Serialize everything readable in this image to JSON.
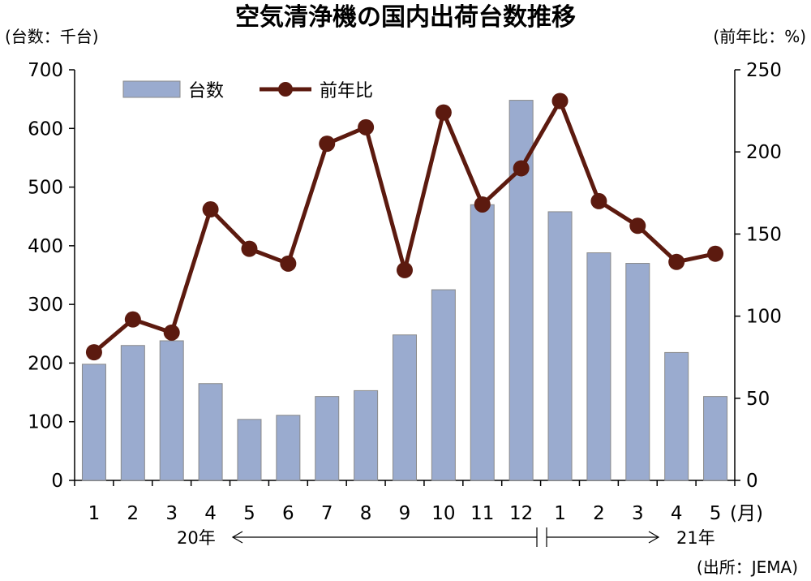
{
  "chart_data": {
    "type": "bar+line",
    "title": "空気清浄機の国内出荷台数推移",
    "y_left_label": "(台数：千台)",
    "y_right_label": "(前年比：%)",
    "x_unit_label": "(月)",
    "categories": [
      "1",
      "2",
      "3",
      "4",
      "5",
      "6",
      "7",
      "8",
      "9",
      "10",
      "11",
      "12",
      "1",
      "2",
      "3",
      "4",
      "5"
    ],
    "year_labels": [
      "20年",
      "21年"
    ],
    "source": "(出所：JEMA)",
    "ylim_left": [
      0,
      700
    ],
    "yticks_left": [
      "0",
      "100",
      "200",
      "300",
      "400",
      "500",
      "600",
      "700"
    ],
    "ylim_right": [
      0,
      250
    ],
    "yticks_right": [
      "0",
      "50",
      "100",
      "150",
      "200",
      "250"
    ],
    "legend_position": "top-left",
    "series": [
      {
        "name": "台数",
        "type": "bar",
        "axis": "left",
        "color": "#9aabcf",
        "values": [
          198,
          230,
          238,
          165,
          104,
          111,
          143,
          153,
          248,
          325,
          470,
          648,
          458,
          388,
          370,
          218,
          143
        ]
      },
      {
        "name": "前年比",
        "type": "line",
        "axis": "right",
        "color": "#5c1a0f",
        "values": [
          78,
          98,
          90,
          165,
          141,
          132,
          205,
          215,
          128,
          224,
          168,
          190,
          231,
          170,
          155,
          133,
          138
        ]
      }
    ]
  }
}
